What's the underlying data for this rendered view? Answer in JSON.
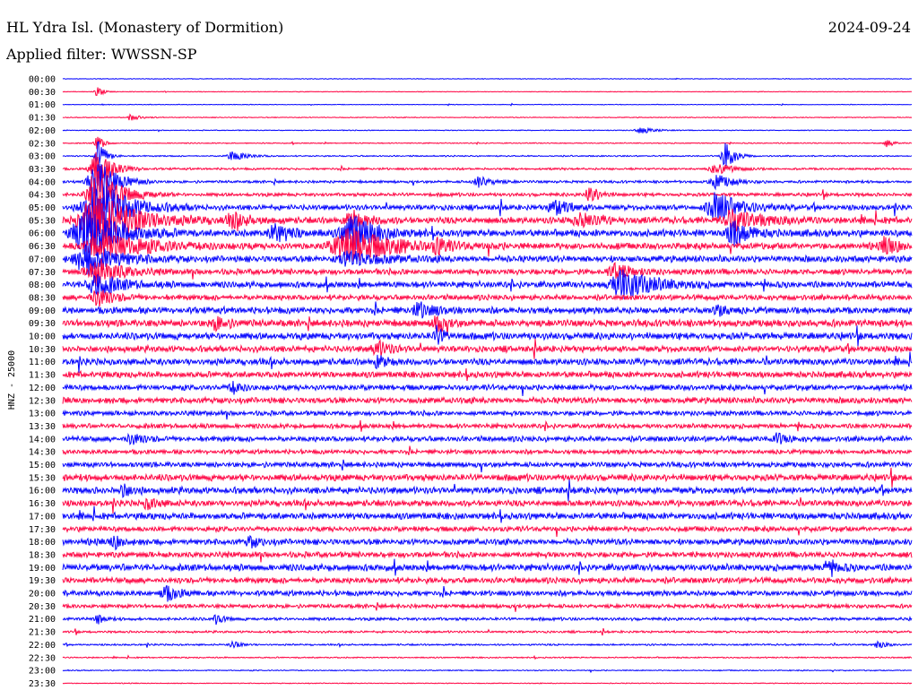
{
  "header": {
    "station": "HL Ydra Isl. (Monastery of Dormition)",
    "date": "2024-09-24",
    "filter": "Applied filter: WWSSN-SP"
  },
  "chart_data": {
    "type": "line",
    "title": "HL Ydra Isl. (Monastery of Dormition)",
    "date": "2024-09-24",
    "filter": "WWSSN-SP",
    "ylabel": "HNZ - 25000",
    "row_labels": [
      "00:00",
      "00:30",
      "01:00",
      "01:30",
      "02:00",
      "02:30",
      "03:00",
      "03:30",
      "04:00",
      "04:30",
      "05:00",
      "05:30",
      "06:00",
      "06:30",
      "07:00",
      "07:30",
      "08:00",
      "08:30",
      "09:00",
      "09:30",
      "10:00",
      "10:30",
      "11:00",
      "11:30",
      "12:00",
      "12:30",
      "13:00",
      "13:30",
      "14:00",
      "14:30",
      "15:00",
      "15:30",
      "16:00",
      "16:30",
      "17:00",
      "17:30",
      "18:00",
      "18:30",
      "19:00",
      "19:30",
      "20:00",
      "20:30",
      "21:00",
      "21:30",
      "22:00",
      "22:30",
      "23:00",
      "23:30"
    ],
    "row_noise": [
      0.3,
      0.3,
      0.3,
      0.4,
      0.4,
      0.5,
      0.6,
      1.0,
      1.2,
      1.6,
      2.4,
      3.0,
      3.2,
      3.0,
      3.0,
      2.6,
      3.0,
      2.4,
      3.0,
      3.2,
      3.2,
      2.8,
      3.0,
      2.8,
      2.6,
      2.8,
      2.2,
      2.2,
      2.4,
      2.0,
      2.4,
      3.0,
      3.0,
      2.8,
      3.0,
      2.4,
      2.8,
      2.6,
      3.2,
      2.6,
      2.4,
      1.8,
      1.4,
      1.0,
      0.8,
      0.6,
      0.5,
      0.4
    ],
    "events": [
      {
        "row": 1,
        "x": 0.04,
        "amp": 7,
        "w": 0.004
      },
      {
        "row": 3,
        "x": 0.08,
        "amp": 4,
        "w": 0.005
      },
      {
        "row": 4,
        "x": 0.68,
        "amp": 4,
        "w": 0.008
      },
      {
        "row": 5,
        "x": 0.04,
        "amp": 10,
        "w": 0.004
      },
      {
        "row": 5,
        "x": 0.97,
        "amp": 4,
        "w": 0.005
      },
      {
        "row": 6,
        "x": 0.04,
        "amp": 20,
        "w": 0.005
      },
      {
        "row": 6,
        "x": 0.2,
        "amp": 5,
        "w": 0.01
      },
      {
        "row": 6,
        "x": 0.78,
        "amp": 16,
        "w": 0.006
      },
      {
        "row": 7,
        "x": 0.04,
        "amp": 22,
        "w": 0.01
      },
      {
        "row": 7,
        "x": 0.77,
        "amp": 6,
        "w": 0.01
      },
      {
        "row": 8,
        "x": 0.04,
        "amp": 26,
        "w": 0.012
      },
      {
        "row": 8,
        "x": 0.49,
        "amp": 6,
        "w": 0.008
      },
      {
        "row": 8,
        "x": 0.77,
        "amp": 8,
        "w": 0.01
      },
      {
        "row": 9,
        "x": 0.04,
        "amp": 28,
        "w": 0.015
      },
      {
        "row": 9,
        "x": 0.62,
        "amp": 10,
        "w": 0.006
      },
      {
        "row": 10,
        "x": 0.04,
        "amp": 30,
        "w": 0.02
      },
      {
        "row": 10,
        "x": 0.58,
        "amp": 8,
        "w": 0.01
      },
      {
        "row": 10,
        "x": 0.77,
        "amp": 18,
        "w": 0.015
      },
      {
        "row": 11,
        "x": 0.04,
        "amp": 30,
        "w": 0.025
      },
      {
        "row": 11,
        "x": 0.2,
        "amp": 8,
        "w": 0.01
      },
      {
        "row": 11,
        "x": 0.34,
        "amp": 10,
        "w": 0.01
      },
      {
        "row": 11,
        "x": 0.61,
        "amp": 7,
        "w": 0.012
      },
      {
        "row": 11,
        "x": 0.79,
        "amp": 10,
        "w": 0.02
      },
      {
        "row": 12,
        "x": 0.03,
        "amp": 30,
        "w": 0.02
      },
      {
        "row": 12,
        "x": 0.25,
        "amp": 9,
        "w": 0.012
      },
      {
        "row": 12,
        "x": 0.34,
        "amp": 20,
        "w": 0.015
      },
      {
        "row": 12,
        "x": 0.79,
        "amp": 14,
        "w": 0.01
      },
      {
        "row": 13,
        "x": 0.05,
        "amp": 14,
        "w": 0.03
      },
      {
        "row": 13,
        "x": 0.34,
        "amp": 18,
        "w": 0.03
      },
      {
        "row": 13,
        "x": 0.44,
        "amp": 8,
        "w": 0.006
      },
      {
        "row": 13,
        "x": 0.97,
        "amp": 10,
        "w": 0.008
      },
      {
        "row": 14,
        "x": 0.03,
        "amp": 16,
        "w": 0.02
      },
      {
        "row": 14,
        "x": 0.34,
        "amp": 8,
        "w": 0.02
      },
      {
        "row": 15,
        "x": 0.04,
        "amp": 14,
        "w": 0.015
      },
      {
        "row": 15,
        "x": 0.65,
        "amp": 8,
        "w": 0.01
      },
      {
        "row": 16,
        "x": 0.04,
        "amp": 12,
        "w": 0.015
      },
      {
        "row": 16,
        "x": 0.66,
        "amp": 16,
        "w": 0.02
      },
      {
        "row": 17,
        "x": 0.04,
        "amp": 10,
        "w": 0.01
      },
      {
        "row": 18,
        "x": 0.42,
        "amp": 8,
        "w": 0.01
      },
      {
        "row": 18,
        "x": 0.77,
        "amp": 8,
        "w": 0.006
      },
      {
        "row": 19,
        "x": 0.44,
        "amp": 10,
        "w": 0.006
      },
      {
        "row": 19,
        "x": 0.18,
        "amp": 6,
        "w": 0.008
      },
      {
        "row": 20,
        "x": 0.44,
        "amp": 10,
        "w": 0.005
      },
      {
        "row": 21,
        "x": 0.37,
        "amp": 8,
        "w": 0.008
      },
      {
        "row": 22,
        "x": 0.37,
        "amp": 6,
        "w": 0.006
      },
      {
        "row": 24,
        "x": 0.2,
        "amp": 6,
        "w": 0.006
      },
      {
        "row": 28,
        "x": 0.08,
        "amp": 6,
        "w": 0.008
      },
      {
        "row": 28,
        "x": 0.84,
        "amp": 6,
        "w": 0.006
      },
      {
        "row": 32,
        "x": 0.07,
        "amp": 6,
        "w": 0.006
      },
      {
        "row": 33,
        "x": 0.1,
        "amp": 6,
        "w": 0.006
      },
      {
        "row": 36,
        "x": 0.06,
        "amp": 7,
        "w": 0.006
      },
      {
        "row": 36,
        "x": 0.22,
        "amp": 6,
        "w": 0.006
      },
      {
        "row": 38,
        "x": 0.9,
        "amp": 6,
        "w": 0.008
      },
      {
        "row": 40,
        "x": 0.12,
        "amp": 8,
        "w": 0.008
      },
      {
        "row": 42,
        "x": 0.04,
        "amp": 6,
        "w": 0.004
      },
      {
        "row": 42,
        "x": 0.18,
        "amp": 5,
        "w": 0.005
      },
      {
        "row": 44,
        "x": 0.2,
        "amp": 4,
        "w": 0.005
      },
      {
        "row": 44,
        "x": 0.96,
        "amp": 4,
        "w": 0.005
      }
    ],
    "colors": [
      "#0000ff",
      "#ff0040"
    ],
    "xlim": [
      0,
      1
    ]
  }
}
